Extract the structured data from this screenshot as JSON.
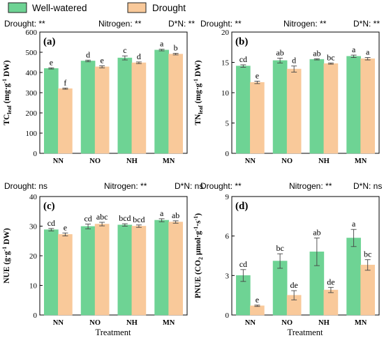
{
  "legend": [
    {
      "name": "Well-watered",
      "color": "#6ed394"
    },
    {
      "name": "Drought",
      "color": "#f9c99a"
    }
  ],
  "chart_data": [
    {
      "type": "bar",
      "panel_label": "(a)",
      "stats": [
        "Drought: **",
        "Nitrogen: **",
        "D*N: **"
      ],
      "categories": [
        "NN",
        "NO",
        "NH",
        "MN"
      ],
      "ylabel_parts": [
        "TC",
        "leaf",
        " (mg·g",
        "-1",
        " DW)"
      ],
      "xlabel": "",
      "ylim": [
        0,
        600
      ],
      "yticks": [
        0,
        100,
        200,
        300,
        400,
        500,
        600
      ],
      "series": [
        {
          "name": "Well-watered",
          "values": [
            420,
            457,
            472,
            511
          ],
          "errors": [
            3,
            4,
            10,
            4
          ],
          "letters": [
            "e",
            "d",
            "c",
            "a"
          ]
        },
        {
          "name": "Drought",
          "values": [
            320,
            428,
            448,
            491
          ],
          "errors": [
            3,
            5,
            4,
            4
          ],
          "letters": [
            "f",
            "e",
            "d",
            "b"
          ]
        }
      ]
    },
    {
      "type": "bar",
      "panel_label": "(b)",
      "stats": [
        "Drought: **",
        "Nitrogen: **",
        "D*N: **"
      ],
      "categories": [
        "NN",
        "NO",
        "NH",
        "MN"
      ],
      "ylabel_parts": [
        "TN",
        "leaf",
        " (mg·g",
        "-1",
        " DW)"
      ],
      "xlabel": "",
      "ylim": [
        0,
        20
      ],
      "yticks": [
        0,
        5,
        10,
        15,
        20
      ],
      "series": [
        {
          "name": "Well-watered",
          "values": [
            14.4,
            15.3,
            15.5,
            16.0
          ],
          "errors": [
            0.2,
            0.4,
            0.1,
            0.2
          ],
          "letters": [
            "cd",
            "ab",
            "ab",
            "a"
          ]
        },
        {
          "name": "Drought",
          "values": [
            11.7,
            13.9,
            14.8,
            15.6
          ],
          "errors": [
            0.2,
            0.5,
            0.1,
            0.2
          ],
          "letters": [
            "e",
            "d",
            "bc",
            "a"
          ]
        }
      ]
    },
    {
      "type": "bar",
      "panel_label": "(c)",
      "stats": [
        "Drought: ns",
        "Nitrogen: **",
        "D*N: ns"
      ],
      "categories": [
        "NN",
        "NO",
        "NH",
        "MN"
      ],
      "ylabel_parts": [
        "NUE (g·g",
        "-1",
        " DW)"
      ],
      "xlabel": "Treatment",
      "ylim": [
        0,
        40
      ],
      "yticks": [
        0,
        10,
        20,
        30,
        40
      ],
      "series": [
        {
          "name": "Well-watered",
          "values": [
            28.8,
            29.9,
            30.4,
            32.0
          ],
          "errors": [
            0.4,
            0.8,
            0.4,
            0.5
          ],
          "letters": [
            "cd",
            "cd",
            "bcd",
            "a"
          ]
        },
        {
          "name": "Drought",
          "values": [
            27.2,
            30.7,
            30.0,
            31.4
          ],
          "errors": [
            0.5,
            0.6,
            0.4,
            0.4
          ],
          "letters": [
            "e",
            "abc",
            "bcd",
            "ab"
          ]
        }
      ]
    },
    {
      "type": "bar",
      "panel_label": "(d)",
      "stats": [
        "Drought: **",
        "Nitrogen: **",
        "D*N: ns"
      ],
      "categories": [
        "NN",
        "NO",
        "NH",
        "MN"
      ],
      "ylabel_parts": [
        "PNUE (CO",
        "2",
        " μmol·g",
        "-1",
        "·s",
        "-1",
        ")"
      ],
      "xlabel": "Treatment",
      "ylim": [
        0,
        9
      ],
      "yticks": [
        0,
        3,
        6,
        9
      ],
      "series": [
        {
          "name": "Well-watered",
          "values": [
            3.0,
            4.1,
            4.8,
            5.85
          ],
          "errors": [
            0.45,
            0.55,
            1.05,
            0.65
          ],
          "letters": [
            "cd",
            "bc",
            "ab",
            "a"
          ]
        },
        {
          "name": "Drought",
          "values": [
            0.7,
            1.5,
            1.9,
            3.8
          ],
          "errors": [
            0.05,
            0.35,
            0.2,
            0.4
          ],
          "letters": [
            "e",
            "de",
            "de",
            "bc"
          ]
        }
      ]
    }
  ]
}
